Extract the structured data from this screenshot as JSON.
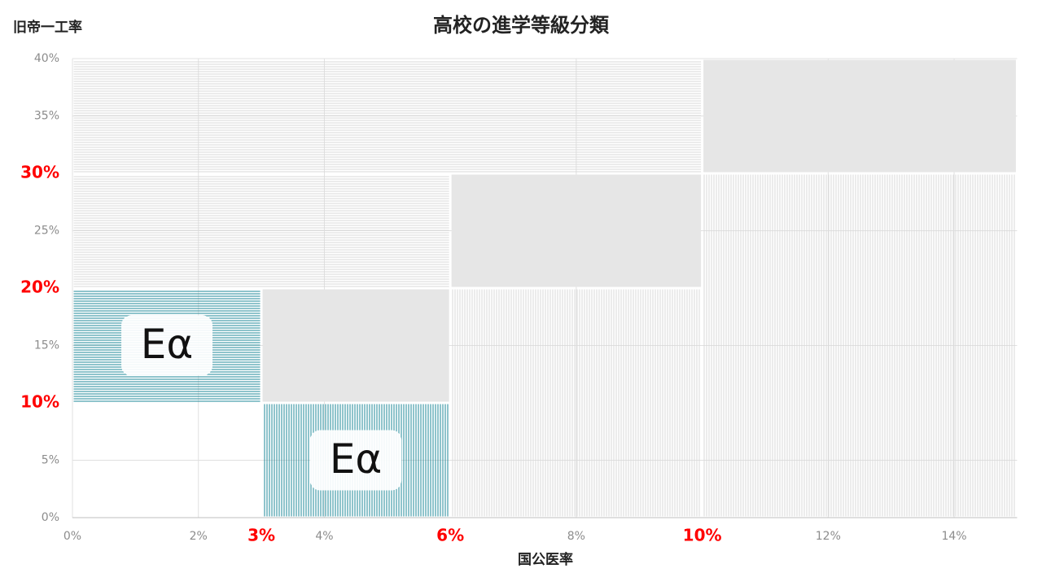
{
  "chart_data": {
    "type": "mosaic",
    "title": "高校の進学等級分類",
    "x_label": "国公医率",
    "y_label": "旧帝一工率",
    "xlim": [
      0,
      15
    ],
    "ylim": [
      0,
      40
    ],
    "xticks": [
      {
        "value": 0,
        "label": "0%"
      },
      {
        "value": 2,
        "label": "2%"
      },
      {
        "value": 3,
        "label": "3%",
        "highlight": true
      },
      {
        "value": 4,
        "label": "4%"
      },
      {
        "value": 6,
        "label": "6%",
        "highlight": true
      },
      {
        "value": 8,
        "label": "8%"
      },
      {
        "value": 10,
        "label": "10%",
        "highlight": true
      },
      {
        "value": 12,
        "label": "12%"
      },
      {
        "value": 14,
        "label": "14%"
      }
    ],
    "yticks": [
      {
        "value": 0,
        "label": "0%"
      },
      {
        "value": 5,
        "label": "5%"
      },
      {
        "value": 10,
        "label": "10%",
        "highlight": true
      },
      {
        "value": 15,
        "label": "15%"
      },
      {
        "value": 20,
        "label": "20%",
        "highlight": true
      },
      {
        "value": 25,
        "label": "25%"
      },
      {
        "value": 30,
        "label": "30%",
        "highlight": true
      },
      {
        "value": 35,
        "label": "35%"
      },
      {
        "value": 40,
        "label": "40%"
      }
    ],
    "grid": true,
    "regions": [
      {
        "x": [
          0,
          10
        ],
        "y": [
          30,
          40
        ],
        "style": "hatch-h",
        "color": "#d9d9d9"
      },
      {
        "x": [
          10,
          15
        ],
        "y": [
          30,
          40
        ],
        "style": "solid",
        "color": "#e6e6e6"
      },
      {
        "x": [
          0,
          6
        ],
        "y": [
          20,
          30
        ],
        "style": "hatch-h",
        "color": "#d9d9d9"
      },
      {
        "x": [
          6,
          10
        ],
        "y": [
          20,
          30
        ],
        "style": "solid",
        "color": "#e6e6e6"
      },
      {
        "x": [
          0,
          3
        ],
        "y": [
          10,
          20
        ],
        "style": "hatch-h",
        "color": "#1f8a9a",
        "label": "Eα"
      },
      {
        "x": [
          3,
          6
        ],
        "y": [
          10,
          20
        ],
        "style": "solid",
        "color": "#e6e6e6"
      },
      {
        "x": [
          3,
          6
        ],
        "y": [
          0,
          10
        ],
        "style": "hatch-v",
        "color": "#1f8a9a",
        "label": "Eα"
      },
      {
        "x": [
          6,
          10
        ],
        "y": [
          0,
          20
        ],
        "style": "hatch-v",
        "color": "#d9d9d9"
      },
      {
        "x": [
          10,
          15
        ],
        "y": [
          0,
          30
        ],
        "style": "hatch-v",
        "color": "#d9d9d9"
      }
    ]
  }
}
